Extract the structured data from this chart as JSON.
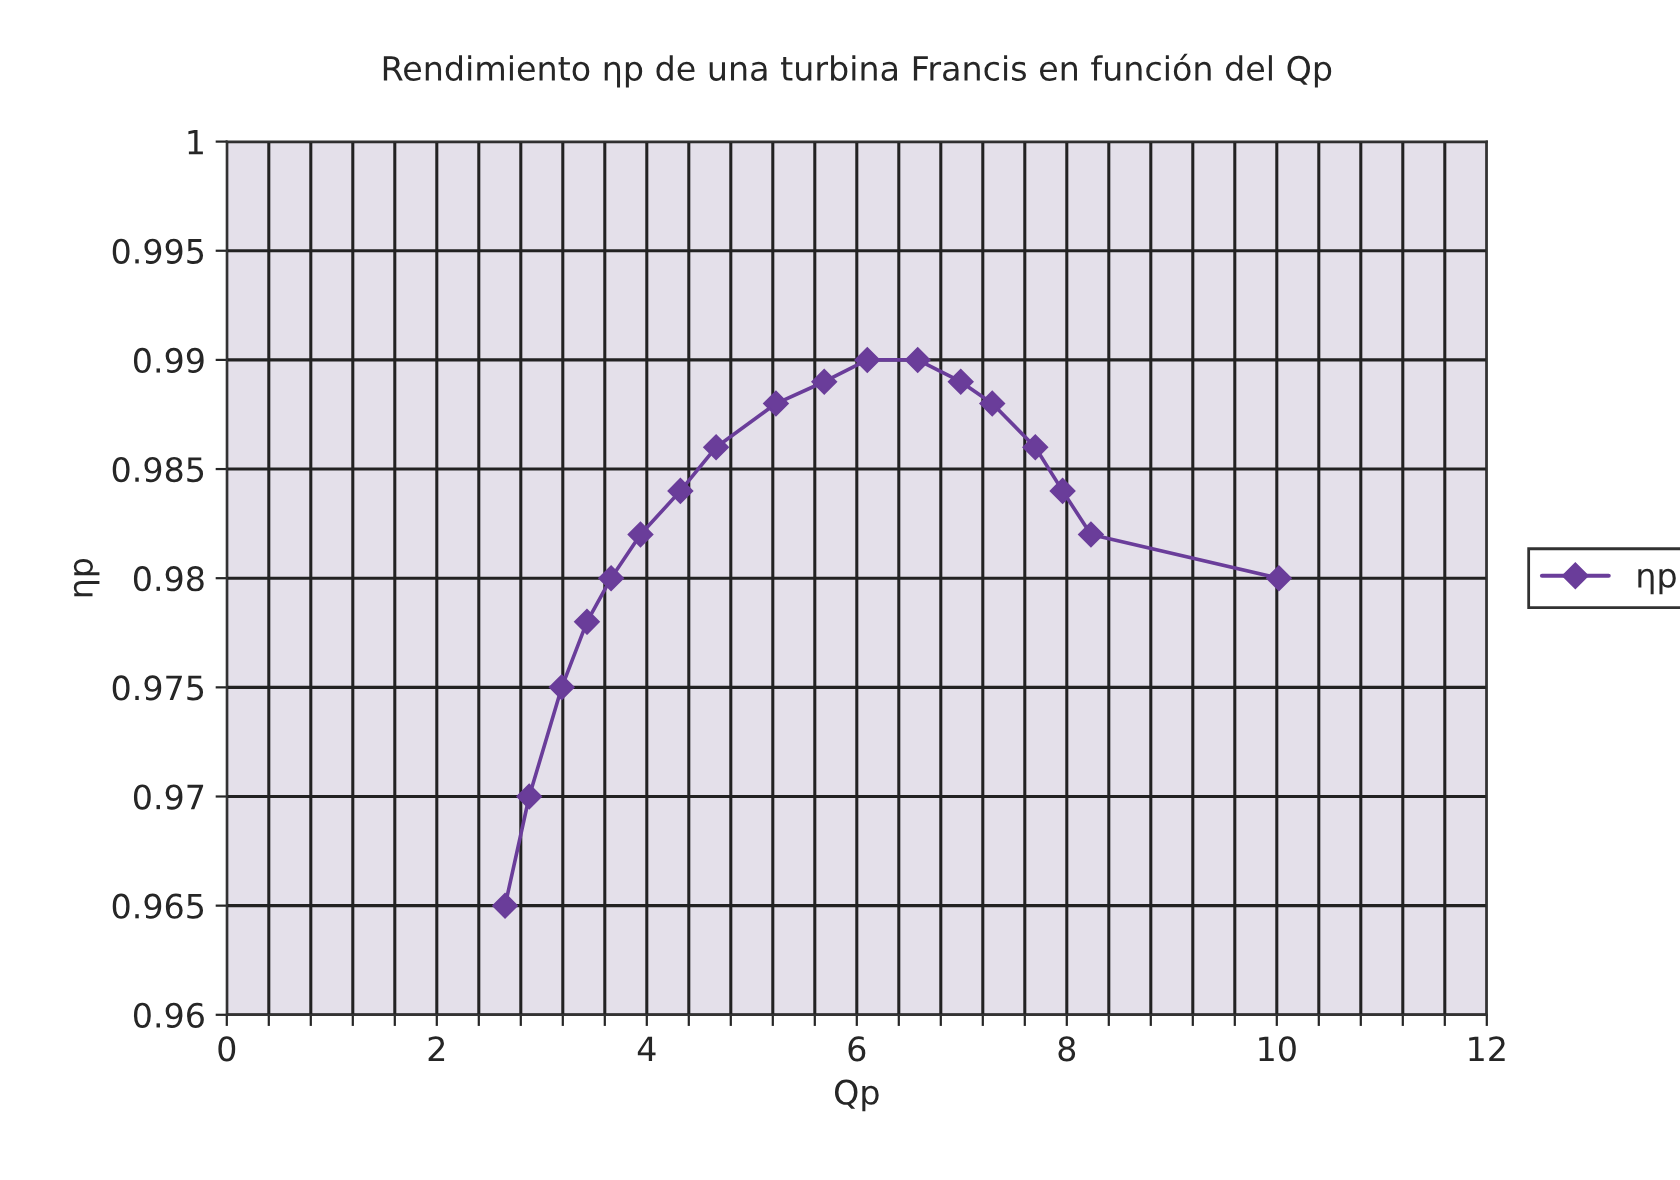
{
  "chart_data": {
    "type": "line",
    "title": "Rendimiento ηp de una turbina Francis en función del Qp",
    "xlabel": "Qp",
    "ylabel": "ηp",
    "series": [
      {
        "name": "ηp",
        "color": "#6a3d9a",
        "x": [
          2.65,
          2.88,
          3.19,
          3.43,
          3.66,
          3.94,
          4.32,
          4.66,
          5.23,
          5.69,
          6.1,
          6.58,
          6.99,
          7.29,
          7.7,
          7.96,
          8.23,
          10.02
        ],
        "values": [
          0.965,
          0.97,
          0.975,
          0.978,
          0.98,
          0.982,
          0.984,
          0.986,
          0.988,
          0.989,
          0.99,
          0.99,
          0.989,
          0.988,
          0.986,
          0.984,
          0.982,
          0.98
        ]
      }
    ],
    "xlim": [
      0,
      12
    ],
    "xticks": [
      0,
      {
        "value": 0.4,
        "label": null
      },
      {
        "value": 0.8,
        "label": null
      },
      {
        "value": 1.2,
        "label": null
      },
      {
        "value": 1.6,
        "label": null
      },
      2,
      {
        "value": 2.4,
        "label": null
      },
      {
        "value": 2.8,
        "label": null
      },
      {
        "value": 3.2,
        "label": null
      },
      {
        "value": 3.6,
        "label": null
      },
      4,
      {
        "value": 4.4,
        "label": null
      },
      {
        "value": 4.8,
        "label": null
      },
      {
        "value": 5.2,
        "label": null
      },
      {
        "value": 5.6,
        "label": null
      },
      6,
      {
        "value": 6.4,
        "label": null
      },
      {
        "value": 6.8,
        "label": null
      },
      {
        "value": 7.2,
        "label": null
      },
      {
        "value": 7.6,
        "label": null
      },
      8,
      {
        "value": 8.4,
        "label": null
      },
      {
        "value": 8.8,
        "label": null
      },
      {
        "value": 9.2,
        "label": null
      },
      {
        "value": 9.6,
        "label": null
      },
      10,
      {
        "value": 10.4,
        "label": null
      },
      {
        "value": 10.8,
        "label": null
      },
      {
        "value": 11.2,
        "label": null
      },
      {
        "value": 11.6,
        "label": null
      },
      12
    ],
    "ylim": [
      0.96,
      1
    ],
    "yticks": [
      0.96,
      0.965,
      0.97,
      0.975,
      0.98,
      0.985,
      0.99,
      0.995,
      1
    ],
    "grid": true,
    "legend": "right",
    "marker": "diamond",
    "line_style": "solid"
  }
}
